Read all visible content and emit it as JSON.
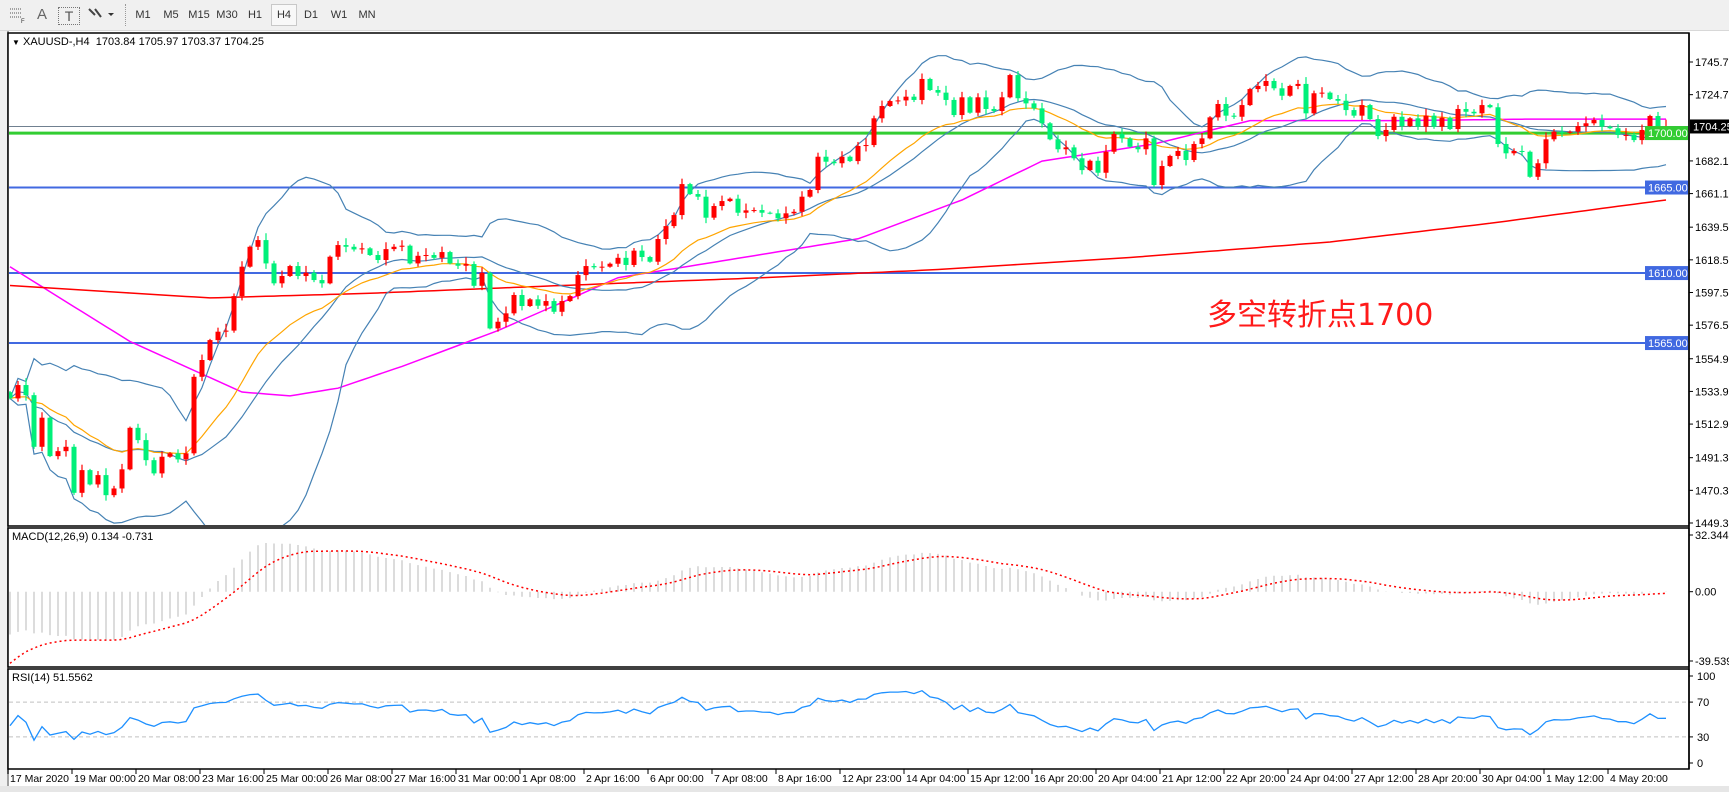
{
  "toolbar": {
    "icons": [
      "period-separators-icon",
      "text-label-icon",
      "text-box-icon",
      "arrows-icon"
    ],
    "text_icon_A": "A",
    "text_icon_T": "T",
    "timeframes": [
      "M1",
      "M5",
      "M15",
      "M30",
      "H1",
      "H4",
      "D1",
      "W1",
      "MN"
    ],
    "active_timeframe": "H4"
  },
  "chart": {
    "header": {
      "symbol": "XAUUSD-,H4",
      "open": "1703.84",
      "high": "1705.97",
      "low": "1703.37",
      "close": "1704.25"
    },
    "annotation": "多空转折点1700",
    "price_ticks": [
      "1745.70",
      "1724.70",
      "1682.10",
      "1661.10",
      "1639.50",
      "1618.50",
      "1597.50",
      "1576.50",
      "1554.90",
      "1533.90",
      "1512.90",
      "1491.30",
      "1470.30",
      "1449.30"
    ],
    "levels": [
      {
        "value": 1700,
        "label": "1700.00",
        "color": "#32cd32"
      },
      {
        "value": 1665,
        "label": "1665.00",
        "color": "#4169e1"
      },
      {
        "value": 1610,
        "label": "1610.00",
        "color": "#4169e1"
      },
      {
        "value": 1565,
        "label": "1565.00",
        "color": "#4169e1"
      }
    ],
    "current_price": {
      "value": 1704.25,
      "label": "1704.25",
      "color": "#708090"
    },
    "time_labels": [
      "17 Mar 2020",
      "19 Mar 00:00",
      "20 Mar 08:00",
      "23 Mar 16:00",
      "25 Mar 00:00",
      "26 Mar 08:00",
      "27 Mar 16:00",
      "31 Mar 00:00",
      "1 Apr 08:00",
      "2 Apr 16:00",
      "6 Apr 00:00",
      "7 Apr 08:00",
      "8 Apr 16:00",
      "12 Apr 23:00",
      "14 Apr 04:00",
      "15 Apr 12:00",
      "16 Apr 20:00",
      "20 Apr 04:00",
      "21 Apr 12:00",
      "22 Apr 20:00",
      "24 Apr 04:00",
      "27 Apr 12:00",
      "28 Apr 20:00",
      "30 Apr 04:00",
      "1 May 12:00",
      "4 May 20:00"
    ]
  },
  "macd": {
    "label": "MACD(12,26,9) 0.134 -0.731",
    "ticks": [
      "32.344",
      "0.00",
      "-39.539"
    ],
    "range": [
      -39.539,
      32.344
    ]
  },
  "rsi": {
    "label": "RSI(14) 51.5562",
    "ticks": [
      "100",
      "70",
      "30",
      "0"
    ],
    "levels": [
      70,
      30
    ]
  },
  "chart_data": {
    "type": "candlestick",
    "symbol": "XAUUSD-",
    "timeframe": "H4",
    "ylim": [
      1449.3,
      1745.7
    ],
    "grid": false,
    "up_color": "#ff0000",
    "down_color": "#00f07a",
    "closes": [
      1529.4,
      1538.0,
      1531.5,
      1498.3,
      1517.0,
      1492.3,
      1495.5,
      1498.3,
      1468.7,
      1483.3,
      1474.1,
      1480.1,
      1467.2,
      1471.5,
      1483.8,
      1510.5,
      1502.6,
      1489.7,
      1481.2,
      1491.9,
      1494.1,
      1490.2,
      1494.1,
      1543.3,
      1554.1,
      1566.9,
      1572.3,
      1573.0,
      1595.2,
      1614.1,
      1626.9,
      1631.2,
      1616.2,
      1603.4,
      1608.1,
      1614.5,
      1608.1,
      1610.2,
      1605.5,
      1603.4,
      1620.5,
      1628.0,
      1626.9,
      1625.2,
      1625.9,
      1621.6,
      1618.4,
      1625.4,
      1626.9,
      1627.6,
      1616.2,
      1621.1,
      1621.6,
      1619.8,
      1623.5,
      1616.2,
      1614.7,
      1615.8,
      1601.8,
      1610.2,
      1574.4,
      1578.7,
      1584.1,
      1595.9,
      1588.8,
      1593.1,
      1589.0,
      1592.0,
      1585.1,
      1592.0,
      1595.2,
      1608.7,
      1614.5,
      1613.7,
      1614.1,
      1616.0,
      1619.8,
      1615.2,
      1624.4,
      1620.3,
      1617.3,
      1631.9,
      1640.2,
      1647.3,
      1667.2,
      1660.8,
      1659.1,
      1645.6,
      1653.1,
      1656.3,
      1657.8,
      1648.8,
      1650.3,
      1650.5,
      1648.8,
      1648.4,
      1645.2,
      1648.4,
      1649.4,
      1659.1,
      1663.4,
      1684.8,
      1681.6,
      1680.6,
      1684.8,
      1682.0,
      1691.7,
      1692.3,
      1709.5,
      1717.4,
      1720.6,
      1721.0,
      1723.4,
      1721.3,
      1734.8,
      1727.7,
      1726.0,
      1721.3,
      1711.6,
      1723.0,
      1713.1,
      1723.0,
      1715.5,
      1714.2,
      1723.0,
      1737.3,
      1722.4,
      1719.1,
      1715.9,
      1706.3,
      1696.0,
      1689.6,
      1690.8,
      1683.8,
      1676.2,
      1682.2,
      1674.5,
      1688.0,
      1699.4,
      1696.6,
      1691.2,
      1689.6,
      1696.6,
      1666.6,
      1678.8,
      1685.3,
      1688.5,
      1682.7,
      1693.0,
      1696.6,
      1710.1,
      1718.7,
      1711.2,
      1710.5,
      1718.0,
      1728.3,
      1730.3,
      1733.5,
      1728.8,
      1724.0,
      1730.3,
      1731.6,
      1712.7,
      1725.6,
      1726.0,
      1721.9,
      1720.8,
      1714.8,
      1711.2,
      1718.0,
      1709.0,
      1698.1,
      1702.0,
      1710.5,
      1704.5,
      1709.5,
      1704.1,
      1711.2,
      1704.1,
      1709.9,
      1702.6,
      1715.5,
      1713.7,
      1712.7,
      1718.0,
      1716.6,
      1693.0,
      1687.0,
      1688.5,
      1688.0,
      1671.9,
      1680.6,
      1696.0,
      1700.9,
      1700.2,
      1700.9,
      1704.5,
      1706.3,
      1708.4,
      1704.1,
      1703.1,
      1698.8,
      1698.8,
      1695.5,
      1702.0,
      1711.0,
      1704.1,
      1704.25
    ],
    "moving_averages": [
      {
        "color": "#ff00ff",
        "points": [
          [
            0,
            1614
          ],
          [
            15,
            1566
          ],
          [
            29,
            1533.5
          ],
          [
            35,
            1531
          ],
          [
            41,
            1536
          ],
          [
            49,
            1550
          ],
          [
            61,
            1573
          ],
          [
            76,
            1607
          ],
          [
            94,
            1622
          ],
          [
            106,
            1632
          ],
          [
            119,
            1657
          ],
          [
            129,
            1682
          ],
          [
            143,
            1693
          ],
          [
            155,
            1708
          ],
          [
            174,
            1708
          ],
          [
            190,
            1709
          ],
          [
            207,
            1709
          ]
        ]
      },
      {
        "color": "#ff0000",
        "points": [
          [
            0,
            1602
          ],
          [
            25,
            1594
          ],
          [
            45,
            1597
          ],
          [
            69,
            1602
          ],
          [
            94,
            1607
          ],
          [
            115,
            1612
          ],
          [
            140,
            1620
          ],
          [
            165,
            1630
          ],
          [
            185,
            1642
          ],
          [
            207,
            1657
          ]
        ]
      }
    ],
    "bollinger_color": "#4682b4",
    "fast_ma_color": "#ffa500"
  }
}
